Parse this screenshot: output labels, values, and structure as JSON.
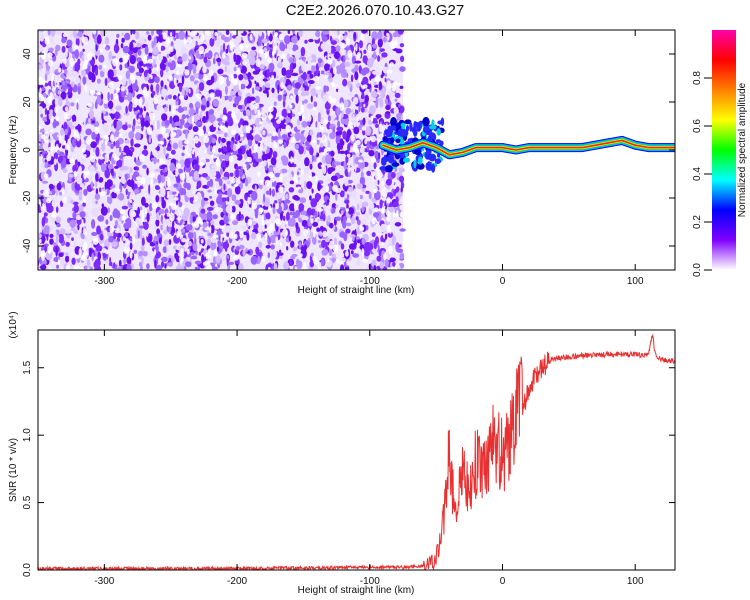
{
  "figure": {
    "title": "C2E2.2026.070.10.43.G27"
  },
  "chart_data": [
    {
      "type": "heatmap",
      "title": "C2E2.2026.070.10.43.G27",
      "xlabel": "Height of straight line (km)",
      "ylabel": "Frequency (Hz)",
      "xlim": [
        -350,
        130
      ],
      "ylim": [
        -50,
        50
      ],
      "x_ticks": [
        -300,
        -200,
        -100,
        0,
        100
      ],
      "y_ticks": [
        -40,
        -20,
        0,
        20,
        40
      ],
      "grid": false,
      "noise_region_x": [
        -350,
        -75
      ],
      "signal_track": {
        "x": [
          -90,
          -80,
          -70,
          -60,
          -50,
          -40,
          -30,
          -20,
          -10,
          0,
          10,
          20,
          40,
          60,
          80,
          90,
          100,
          110,
          120,
          130
        ],
        "frequency": [
          2,
          0,
          1,
          3,
          1,
          -2,
          -1,
          1,
          1,
          1,
          0,
          1,
          1,
          1,
          3,
          4,
          2,
          1,
          1,
          1
        ]
      },
      "colorbar": {
        "label": "Normalized spectral amplitude",
        "range": [
          0,
          1
        ],
        "ticks": [
          0.0,
          0.2,
          0.4,
          0.6,
          0.8
        ],
        "tick_labels": [
          "0.0",
          "0.2",
          "0.4",
          "0.6",
          "0.8"
        ],
        "colors": [
          "#ffffff",
          "#8000ff",
          "#0000ff",
          "#00ffff",
          "#00ff00",
          "#ffff00",
          "#ff8000",
          "#ff0000",
          "#ff00aa"
        ]
      }
    },
    {
      "type": "line",
      "xlabel": "Height of straight line (km)",
      "ylabel": "SNR (10 * v/v)",
      "y_exponent": "(x10⁴)",
      "xlim": [
        -350,
        130
      ],
      "ylim": [
        0,
        1.78
      ],
      "x_ticks": [
        -300,
        -200,
        -100,
        0,
        100
      ],
      "y_ticks": [
        0.0,
        0.5,
        1.0,
        1.5
      ],
      "y_tick_labels": [
        "0.0",
        "0.5",
        "1.0",
        "1.5"
      ],
      "grid": false,
      "color": "#e83030",
      "x": [
        -350,
        -300,
        -250,
        -200,
        -150,
        -100,
        -70,
        -60,
        -55,
        -50,
        -45,
        -42,
        -40,
        -38,
        -35,
        -30,
        -25,
        -20,
        -15,
        -10,
        -5,
        0,
        5,
        10,
        12,
        15,
        20,
        25,
        30,
        35,
        40,
        50,
        60,
        80,
        90,
        100,
        105,
        110,
        113,
        115,
        120,
        130
      ],
      "y": [
        0.01,
        0.01,
        0.01,
        0.01,
        0.015,
        0.02,
        0.02,
        0.03,
        0.04,
        0.1,
        0.3,
        0.7,
        0.95,
        0.6,
        0.45,
        0.75,
        0.6,
        0.8,
        0.7,
        0.9,
        0.95,
        0.85,
        0.95,
        1.1,
        1.3,
        1.2,
        1.35,
        1.45,
        1.5,
        1.55,
        1.57,
        1.58,
        1.59,
        1.6,
        1.6,
        1.6,
        1.59,
        1.6,
        1.75,
        1.6,
        1.56,
        1.55
      ]
    }
  ]
}
